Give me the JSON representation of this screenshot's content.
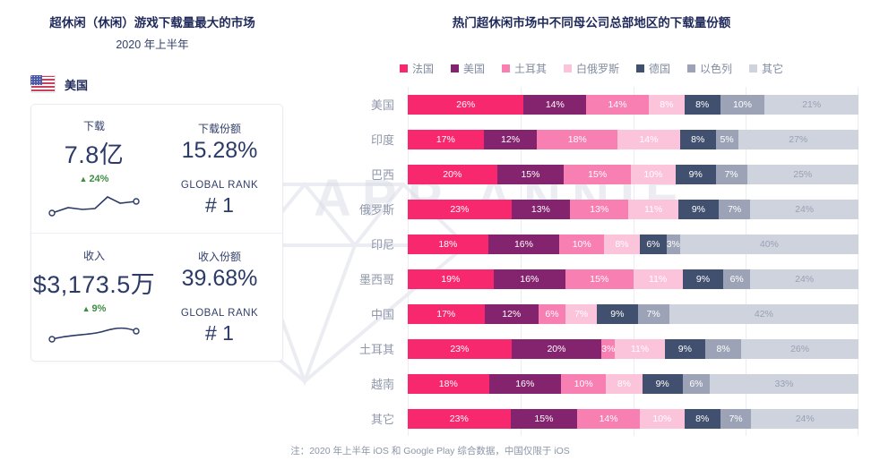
{
  "left_panel": {
    "title": "超休闲（休闲）游戏下载量最大的市场",
    "subtitle": "2020 年上半年",
    "country": "美国",
    "download": {
      "label": "下载",
      "value": "7.8亿",
      "growth": "24%",
      "share_label": "下载份额",
      "share_value": "15.28%",
      "rank_label": "GLOBAL RANK",
      "rank_value": "# 1"
    },
    "revenue": {
      "label": "收入",
      "value": "$3,173.5万",
      "growth": "9%",
      "share_label": "收入份额",
      "share_value": "39.68%",
      "rank_label": "GLOBAL RANK",
      "rank_value": "# 1"
    }
  },
  "right_panel": {
    "title": "热门超休闲市场中不同母公司总部地区的下载量份额"
  },
  "chart_data": {
    "type": "bar",
    "orientation": "horizontal",
    "stacked": true,
    "unit": "%",
    "legend_position": "top",
    "categories": [
      "美国",
      "印度",
      "巴西",
      "俄罗斯",
      "印尼",
      "墨西哥",
      "中国",
      "土耳其",
      "越南",
      "其它"
    ],
    "series": [
      {
        "name": "法国",
        "color": "#F8286F",
        "values": [
          26,
          17,
          20,
          23,
          18,
          19,
          17,
          23,
          18,
          23
        ]
      },
      {
        "name": "美国",
        "color": "#85246E",
        "values": [
          14,
          12,
          15,
          13,
          16,
          16,
          12,
          20,
          16,
          15
        ]
      },
      {
        "name": "土耳其",
        "color": "#F87FB2",
        "values": [
          14,
          18,
          15,
          13,
          10,
          15,
          6,
          3,
          10,
          14
        ]
      },
      {
        "name": "白俄罗斯",
        "color": "#FBC4DB",
        "values": [
          8,
          14,
          10,
          11,
          8,
          11,
          7,
          11,
          8,
          10
        ]
      },
      {
        "name": "德国",
        "color": "#41506E",
        "values": [
          8,
          8,
          9,
          9,
          6,
          9,
          9,
          9,
          9,
          8
        ]
      },
      {
        "name": "以色列",
        "color": "#9CA3B6",
        "values": [
          10,
          5,
          7,
          7,
          3,
          6,
          7,
          8,
          6,
          7
        ]
      },
      {
        "name": "其它",
        "color": "#CFD3DE",
        "values": [
          21,
          27,
          25,
          24,
          40,
          24,
          42,
          26,
          33,
          24
        ]
      }
    ]
  },
  "footer": {
    "note": "注：2020 年上半年 iOS 和 Google Play 综合数据，中国仅限于 iOS"
  },
  "watermark": {
    "text": "APP ANNIE"
  }
}
